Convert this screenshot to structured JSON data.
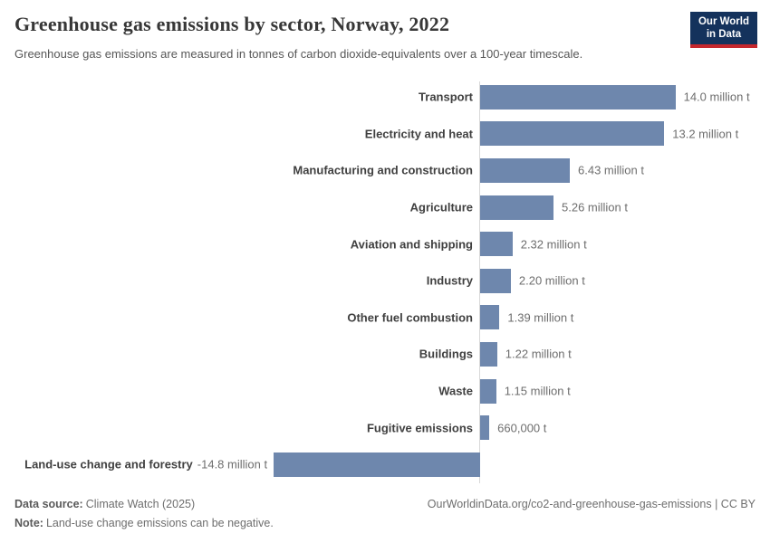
{
  "header": {
    "title": "Greenhouse gas emissions by sector, Norway, 2022",
    "subtitle": "Greenhouse gas emissions are measured in tonnes of carbon dioxide-equivalents over a 100-year timescale.",
    "logo": {
      "line1": "Our World",
      "line2": "in Data"
    },
    "logo_colors": {
      "background": "#14325c",
      "underline": "#c5272d"
    }
  },
  "chart_data": {
    "type": "bar",
    "orientation": "horizontal",
    "title": "Greenhouse gas emissions by sector, Norway, 2022",
    "unit": "tonnes of carbon dioxide-equivalents",
    "categories": [
      "Transport",
      "Electricity and heat",
      "Manufacturing and construction",
      "Agriculture",
      "Aviation and shipping",
      "Industry",
      "Other fuel combustion",
      "Buildings",
      "Waste",
      "Fugitive emissions",
      "Land-use change and forestry"
    ],
    "values": [
      14.0,
      13.2,
      6.43,
      5.26,
      2.32,
      2.2,
      1.39,
      1.22,
      1.15,
      0.66,
      -14.8
    ],
    "value_labels": [
      "14.0 million t",
      "13.2 million t",
      "6.43 million t",
      "5.26 million t",
      "2.32 million t",
      "2.20 million t",
      "1.39 million t",
      "1.22 million t",
      "1.15 million t",
      "660,000 t",
      "-14.8 million t"
    ],
    "bar_color": "#6e87ad",
    "axis_color": "#d8d8d8",
    "xlim": [
      -14.8,
      14.0
    ],
    "grid": false,
    "legend": "none"
  },
  "footer": {
    "data_source_label": "Data source:",
    "data_source": "Climate Watch (2025)",
    "note_label": "Note:",
    "note": "Land-use change emissions can be negative.",
    "url": "OurWorldinData.org/co2-and-greenhouse-gas-emissions | CC BY"
  }
}
